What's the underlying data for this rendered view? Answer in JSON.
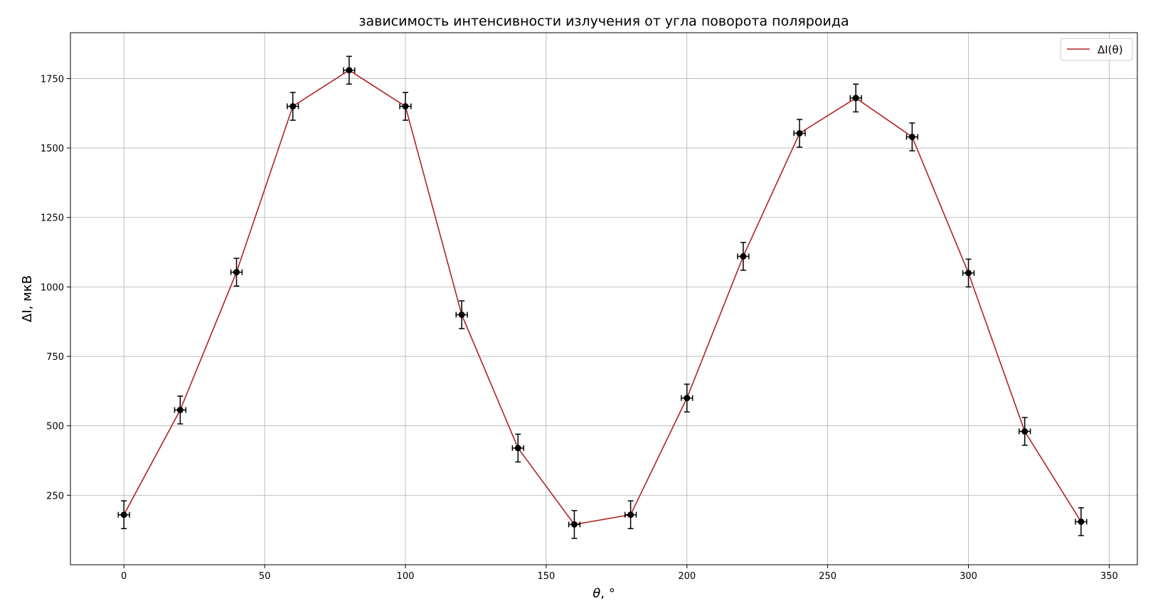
{
  "chart_data": {
    "type": "line",
    "title": "зависимость интенсивности излучения от угла поворота поляроида",
    "xlabel_symbol": "θ",
    "xlabel_unit": ", °",
    "ylabel_symbol": "ΔI",
    "ylabel_unit": ", мкВ",
    "xlim": [
      -19,
      360
    ],
    "ylim": [
      0,
      1915
    ],
    "xticks": [
      0,
      50,
      100,
      150,
      200,
      250,
      300,
      350
    ],
    "yticks": [
      250,
      500,
      750,
      1000,
      1250,
      1500,
      1750
    ],
    "grid": true,
    "legend_position": "top-right",
    "series": [
      {
        "name": "ΔI(θ)",
        "line_color": "#b22222",
        "marker_color": "#000000",
        "x": [
          0,
          20,
          40,
          60,
          80,
          100,
          120,
          140,
          160,
          180,
          200,
          220,
          240,
          260,
          280,
          300,
          320,
          340
        ],
        "y": [
          180,
          557,
          1053,
          1650,
          1780,
          1650,
          900,
          420,
          145,
          180,
          600,
          1110,
          1553,
          1680,
          1540,
          1050,
          480,
          155
        ],
        "x_err": 2,
        "y_err": 50
      }
    ]
  }
}
